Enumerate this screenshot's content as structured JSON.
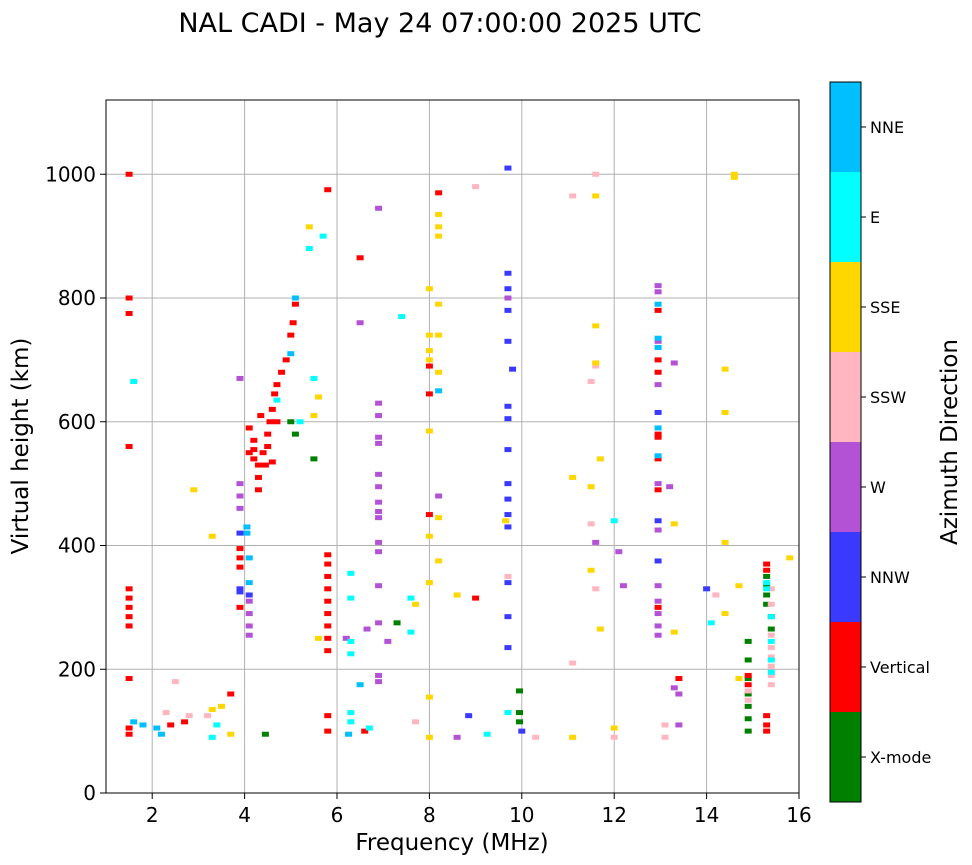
{
  "chart_data": {
    "type": "scatter",
    "title": "NAL CADI - May 24 07:00:00 2025 UTC",
    "xlabel": "Frequency (MHz)",
    "ylabel": "Virtual height (km)",
    "xlim": [
      1,
      16
    ],
    "ylim": [
      0,
      1120
    ],
    "xticks": [
      2,
      4,
      6,
      8,
      10,
      12,
      14,
      16
    ],
    "yticks": [
      0,
      200,
      400,
      600,
      800,
      1000
    ],
    "grid": true,
    "colorbar": {
      "label": "Azimuth Direction",
      "categories": [
        {
          "name": "X-mode",
          "color": "#008000"
        },
        {
          "name": "Vertical",
          "color": "#ff0000"
        },
        {
          "name": "NNW",
          "color": "#3a3aff"
        },
        {
          "name": "W",
          "color": "#b452d6"
        },
        {
          "name": "SSW",
          "color": "#ffb6c1"
        },
        {
          "name": "SSE",
          "color": "#ffd700"
        },
        {
          "name": "E",
          "color": "#00ffff"
        },
        {
          "name": "NNE",
          "color": "#00bfff"
        }
      ]
    },
    "series": [
      {
        "name": "X-mode",
        "points": [
          [
            5.1,
            580
          ],
          [
            5.5,
            540
          ],
          [
            7.3,
            275
          ],
          [
            9.95,
            165
          ],
          [
            9.95,
            130
          ],
          [
            9.95,
            115
          ],
          [
            14.9,
            245
          ],
          [
            14.9,
            215
          ],
          [
            14.9,
            185
          ],
          [
            14.9,
            160
          ],
          [
            14.9,
            140
          ],
          [
            14.9,
            120
          ],
          [
            14.9,
            100
          ],
          [
            15.3,
            350
          ],
          [
            15.3,
            335
          ],
          [
            15.3,
            320
          ],
          [
            15.3,
            305
          ],
          [
            15.4,
            285
          ],
          [
            15.4,
            265
          ],
          [
            4.45,
            95
          ],
          [
            5.0,
            600
          ]
        ]
      },
      {
        "name": "Vertical",
        "points": [
          [
            1.5,
            1000
          ],
          [
            1.5,
            800
          ],
          [
            1.5,
            775
          ],
          [
            1.5,
            560
          ],
          [
            1.5,
            330
          ],
          [
            1.5,
            315
          ],
          [
            1.5,
            300
          ],
          [
            1.5,
            285
          ],
          [
            1.5,
            270
          ],
          [
            1.5,
            185
          ],
          [
            1.5,
            105
          ],
          [
            1.5,
            95
          ],
          [
            2.4,
            110
          ],
          [
            2.7,
            115
          ],
          [
            3.7,
            160
          ],
          [
            3.9,
            395
          ],
          [
            3.9,
            380
          ],
          [
            3.9,
            365
          ],
          [
            3.9,
            300
          ],
          [
            4.1,
            590
          ],
          [
            4.1,
            550
          ],
          [
            4.2,
            570
          ],
          [
            4.2,
            555
          ],
          [
            4.2,
            540
          ],
          [
            4.3,
            530
          ],
          [
            4.3,
            510
          ],
          [
            4.3,
            490
          ],
          [
            4.35,
            610
          ],
          [
            4.4,
            550
          ],
          [
            4.45,
            530
          ],
          [
            4.5,
            580
          ],
          [
            4.5,
            560
          ],
          [
            4.55,
            600
          ],
          [
            4.6,
            620
          ],
          [
            4.6,
            535
          ],
          [
            4.65,
            645
          ],
          [
            4.7,
            660
          ],
          [
            4.7,
            600
          ],
          [
            4.8,
            680
          ],
          [
            4.9,
            700
          ],
          [
            5.0,
            740
          ],
          [
            5.05,
            760
          ],
          [
            5.1,
            790
          ],
          [
            5.8,
            975
          ],
          [
            5.8,
            385
          ],
          [
            5.8,
            370
          ],
          [
            5.8,
            350
          ],
          [
            5.8,
            330
          ],
          [
            5.8,
            310
          ],
          [
            5.8,
            290
          ],
          [
            5.8,
            270
          ],
          [
            5.8,
            250
          ],
          [
            5.8,
            230
          ],
          [
            5.8,
            125
          ],
          [
            5.8,
            100
          ],
          [
            6.5,
            865
          ],
          [
            6.6,
            100
          ],
          [
            8.0,
            690
          ],
          [
            8.0,
            645
          ],
          [
            8.0,
            450
          ],
          [
            8.2,
            970
          ],
          [
            9.0,
            315
          ],
          [
            12.95,
            780
          ],
          [
            12.95,
            700
          ],
          [
            12.95,
            680
          ],
          [
            12.95,
            575
          ],
          [
            12.95,
            580
          ],
          [
            12.95,
            540
          ],
          [
            12.95,
            490
          ],
          [
            12.95,
            300
          ],
          [
            13.4,
            185
          ],
          [
            14.9,
            190
          ],
          [
            14.9,
            175
          ],
          [
            15.3,
            370
          ],
          [
            15.3,
            360
          ],
          [
            15.3,
            125
          ],
          [
            15.3,
            110
          ],
          [
            15.3,
            100
          ]
        ]
      },
      {
        "name": "NNW",
        "points": [
          [
            9.7,
            1010
          ],
          [
            9.7,
            840
          ],
          [
            9.7,
            815
          ],
          [
            9.7,
            780
          ],
          [
            9.7,
            730
          ],
          [
            9.7,
            625
          ],
          [
            9.7,
            605
          ],
          [
            9.7,
            555
          ],
          [
            9.7,
            500
          ],
          [
            9.7,
            475
          ],
          [
            9.7,
            450
          ],
          [
            9.7,
            430
          ],
          [
            9.7,
            340
          ],
          [
            9.7,
            285
          ],
          [
            9.7,
            235
          ],
          [
            9.8,
            685
          ],
          [
            8.85,
            125
          ],
          [
            10.0,
            100
          ],
          [
            12.95,
            615
          ],
          [
            12.95,
            440
          ],
          [
            12.95,
            375
          ],
          [
            14.0,
            330
          ],
          [
            3.9,
            330
          ],
          [
            3.9,
            325
          ],
          [
            4.1,
            320
          ],
          [
            3.9,
            420
          ]
        ]
      },
      {
        "name": "W",
        "points": [
          [
            3.9,
            670
          ],
          [
            3.9,
            500
          ],
          [
            3.9,
            480
          ],
          [
            3.9,
            460
          ],
          [
            4.1,
            310
          ],
          [
            4.1,
            290
          ],
          [
            4.1,
            270
          ],
          [
            4.1,
            255
          ],
          [
            6.5,
            760
          ],
          [
            6.9,
            945
          ],
          [
            6.9,
            630
          ],
          [
            6.9,
            610
          ],
          [
            6.9,
            575
          ],
          [
            6.9,
            565
          ],
          [
            6.9,
            515
          ],
          [
            6.9,
            495
          ],
          [
            6.9,
            470
          ],
          [
            6.9,
            455
          ],
          [
            6.9,
            445
          ],
          [
            6.9,
            405
          ],
          [
            6.9,
            390
          ],
          [
            6.9,
            335
          ],
          [
            6.9,
            275
          ],
          [
            6.9,
            190
          ],
          [
            6.9,
            180
          ],
          [
            7.1,
            245
          ],
          [
            6.65,
            265
          ],
          [
            6.2,
            250
          ],
          [
            8.2,
            480
          ],
          [
            8.6,
            90
          ],
          [
            9.7,
            800
          ],
          [
            11.6,
            405
          ],
          [
            12.1,
            390
          ],
          [
            12.2,
            335
          ],
          [
            12.95,
            820
          ],
          [
            12.95,
            810
          ],
          [
            12.95,
            730
          ],
          [
            12.95,
            660
          ],
          [
            12.95,
            500
          ],
          [
            12.95,
            425
          ],
          [
            12.95,
            335
          ],
          [
            12.95,
            310
          ],
          [
            12.95,
            290
          ],
          [
            12.95,
            270
          ],
          [
            12.95,
            255
          ],
          [
            13.2,
            495
          ],
          [
            13.3,
            695
          ],
          [
            13.3,
            170
          ],
          [
            13.4,
            160
          ],
          [
            13.4,
            110
          ]
        ]
      },
      {
        "name": "SSW",
        "points": [
          [
            2.5,
            180
          ],
          [
            2.3,
            130
          ],
          [
            2.8,
            125
          ],
          [
            3.2,
            125
          ],
          [
            7.7,
            115
          ],
          [
            9.0,
            980
          ],
          [
            10.3,
            90
          ],
          [
            11.1,
            965
          ],
          [
            11.1,
            210
          ],
          [
            11.5,
            665
          ],
          [
            11.5,
            435
          ],
          [
            11.6,
            690
          ],
          [
            11.6,
            330
          ],
          [
            11.6,
            1000
          ],
          [
            12.0,
            90
          ],
          [
            13.1,
            110
          ],
          [
            13.1,
            90
          ],
          [
            14.2,
            320
          ],
          [
            14.9,
            165
          ],
          [
            14.9,
            150
          ],
          [
            15.4,
            330
          ],
          [
            15.4,
            305
          ],
          [
            15.4,
            255
          ],
          [
            15.4,
            235
          ],
          [
            15.4,
            220
          ],
          [
            15.4,
            205
          ],
          [
            15.4,
            190
          ],
          [
            15.4,
            175
          ],
          [
            9.7,
            350
          ]
        ]
      },
      {
        "name": "SSE",
        "points": [
          [
            2.9,
            490
          ],
          [
            3.3,
            415
          ],
          [
            3.3,
            135
          ],
          [
            3.5,
            140
          ],
          [
            3.7,
            95
          ],
          [
            5.4,
            915
          ],
          [
            5.5,
            610
          ],
          [
            5.6,
            640
          ],
          [
            5.6,
            250
          ],
          [
            7.7,
            305
          ],
          [
            8.0,
            815
          ],
          [
            8.0,
            740
          ],
          [
            8.0,
            715
          ],
          [
            8.0,
            700
          ],
          [
            8.0,
            585
          ],
          [
            8.0,
            415
          ],
          [
            8.0,
            340
          ],
          [
            8.0,
            155
          ],
          [
            8.0,
            90
          ],
          [
            8.2,
            935
          ],
          [
            8.2,
            915
          ],
          [
            8.2,
            900
          ],
          [
            8.2,
            790
          ],
          [
            8.2,
            740
          ],
          [
            8.2,
            680
          ],
          [
            8.2,
            445
          ],
          [
            8.2,
            375
          ],
          [
            8.6,
            320
          ],
          [
            9.65,
            440
          ],
          [
            11.1,
            510
          ],
          [
            11.1,
            90
          ],
          [
            11.5,
            495
          ],
          [
            11.5,
            360
          ],
          [
            11.6,
            965
          ],
          [
            11.6,
            755
          ],
          [
            11.6,
            695
          ],
          [
            11.7,
            540
          ],
          [
            11.7,
            265
          ],
          [
            12.0,
            105
          ],
          [
            13.3,
            435
          ],
          [
            13.3,
            260
          ],
          [
            14.4,
            685
          ],
          [
            14.4,
            615
          ],
          [
            14.4,
            405
          ],
          [
            14.4,
            290
          ],
          [
            14.6,
            1000
          ],
          [
            14.6,
            995
          ],
          [
            14.7,
            335
          ],
          [
            14.7,
            185
          ],
          [
            15.8,
            380
          ]
        ]
      },
      {
        "name": "E",
        "points": [
          [
            1.6,
            665
          ],
          [
            3.3,
            90
          ],
          [
            3.4,
            110
          ],
          [
            5.4,
            880
          ],
          [
            5.5,
            670
          ],
          [
            5.7,
            900
          ],
          [
            6.3,
            315
          ],
          [
            6.3,
            355
          ],
          [
            6.3,
            245
          ],
          [
            6.3,
            225
          ],
          [
            6.3,
            115
          ],
          [
            6.3,
            130
          ],
          [
            6.7,
            105
          ],
          [
            7.4,
            770
          ],
          [
            7.6,
            315
          ],
          [
            7.6,
            260
          ],
          [
            9.25,
            95
          ],
          [
            9.7,
            130
          ],
          [
            12.0,
            440
          ],
          [
            14.1,
            275
          ],
          [
            15.4,
            245
          ],
          [
            15.4,
            285
          ],
          [
            15.3,
            330
          ],
          [
            15.3,
            340
          ],
          [
            15.4,
            215
          ],
          [
            15.4,
            195
          ],
          [
            4.7,
            635
          ],
          [
            5.2,
            600
          ]
        ]
      },
      {
        "name": "NNE",
        "points": [
          [
            1.6,
            115
          ],
          [
            1.8,
            110
          ],
          [
            2.1,
            105
          ],
          [
            2.2,
            95
          ],
          [
            5.1,
            800
          ],
          [
            5.0,
            710
          ],
          [
            4.1,
            380
          ],
          [
            4.1,
            340
          ],
          [
            8.2,
            650
          ],
          [
            12.95,
            790
          ],
          [
            12.95,
            735
          ],
          [
            12.95,
            720
          ],
          [
            12.95,
            545
          ],
          [
            12.95,
            590
          ],
          [
            6.25,
            95
          ],
          [
            6.5,
            175
          ],
          [
            4.05,
            430
          ],
          [
            4.05,
            420
          ]
        ]
      }
    ]
  }
}
